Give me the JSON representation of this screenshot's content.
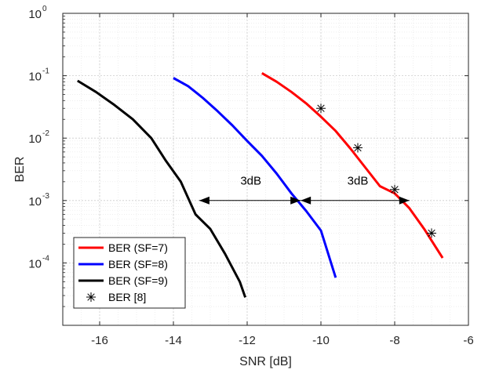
{
  "chart_data": {
    "type": "line",
    "xlabel": "SNR [dB]",
    "ylabel": "BER",
    "xlim": [
      -17,
      -6
    ],
    "ylim": [
      1e-05,
      1
    ],
    "yscale": "log",
    "grid": true,
    "minor_grid": true,
    "xticks": [
      -16,
      -14,
      -12,
      -10,
      -8,
      -6
    ],
    "xtick_labels": [
      "-16",
      "-14",
      "-12",
      "-10",
      "-8",
      "-6"
    ],
    "yticks": [
      0.0001,
      0.001,
      0.01,
      0.1,
      1
    ],
    "ytick_labels": [
      {
        "base": "10",
        "exp": "-4"
      },
      {
        "base": "10",
        "exp": "-3"
      },
      {
        "base": "10",
        "exp": "-2"
      },
      {
        "base": "10",
        "exp": "-1"
      },
      {
        "base": "10",
        "exp": "0"
      }
    ],
    "legend_position": "bottom-left",
    "series": [
      {
        "name": "BER (SF=7)",
        "color": "#ff0000",
        "style": "line",
        "x": [
          -11.6,
          -11.2,
          -10.8,
          -10.4,
          -10.0,
          -9.6,
          -9.2,
          -8.8,
          -8.4,
          -8.0,
          -7.6,
          -7.2,
          -6.7
        ],
        "y": [
          0.11,
          0.08,
          0.055,
          0.036,
          0.022,
          0.013,
          0.0068,
          0.0034,
          0.0017,
          0.0013,
          0.00075,
          0.00035,
          0.00012
        ]
      },
      {
        "name": "BER (SF=8)",
        "color": "#0000ff",
        "style": "line",
        "x": [
          -14.0,
          -13.6,
          -13.2,
          -12.8,
          -12.4,
          -12.0,
          -11.6,
          -11.2,
          -10.8,
          -10.4,
          -10.0,
          -9.6
        ],
        "y": [
          0.092,
          0.068,
          0.044,
          0.027,
          0.016,
          0.009,
          0.0052,
          0.0027,
          0.0013,
          0.00068,
          0.00033,
          5.8e-05
        ]
      },
      {
        "name": "BER (SF=9)",
        "color": "#000000",
        "style": "line",
        "x": [
          -16.6,
          -16.1,
          -15.6,
          -15.1,
          -14.6,
          -14.2,
          -13.8,
          -13.4,
          -13.0,
          -12.6,
          -12.2,
          -12.05
        ],
        "y": [
          0.083,
          0.055,
          0.034,
          0.02,
          0.01,
          0.0043,
          0.002,
          0.0006,
          0.00035,
          0.00014,
          5e-05,
          2.8e-05
        ]
      },
      {
        "name": "BER [8]",
        "color": "#000000",
        "style": "marker",
        "marker": "asterisk",
        "x": [
          -10,
          -9,
          -8,
          -7
        ],
        "y": [
          0.03,
          0.007,
          0.0015,
          0.0003
        ]
      }
    ],
    "annotations": [
      {
        "text": "3dB",
        "x": -11.9,
        "y": 0.0018
      },
      {
        "text": "3dB",
        "x": -9.0,
        "y": 0.0018
      }
    ],
    "arrows": [
      {
        "x_start": -13.3,
        "x_end": -10.55,
        "y": 0.001
      },
      {
        "x_start": -10.55,
        "x_end": -7.6,
        "y": 0.001
      }
    ]
  }
}
